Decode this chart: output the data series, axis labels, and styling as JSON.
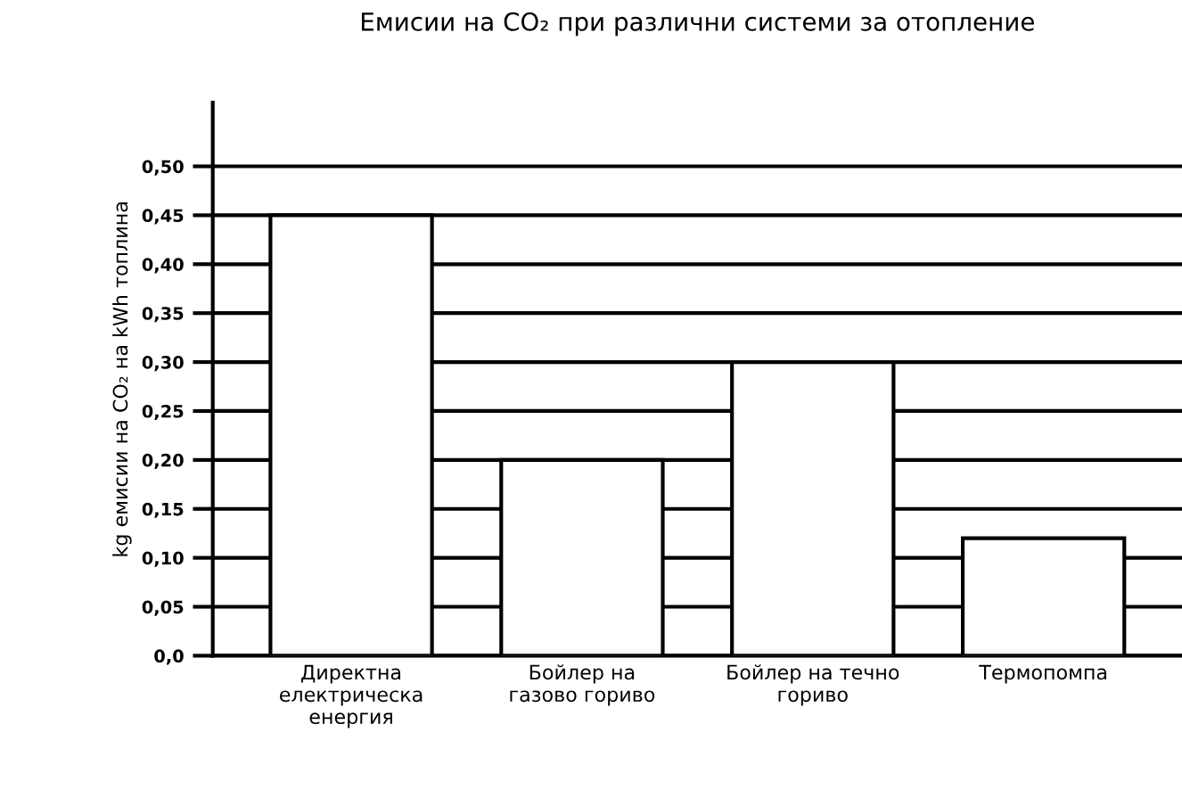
{
  "chart_data": {
    "type": "bar",
    "title": "Емисии на CO₂ при различни системи за отопление",
    "ylabel": "kg емисии на CO₂ на kWh топлина",
    "categories": [
      "Директна\nелектрическа\nенергия",
      "Бойлер на\nгазово гориво",
      "Бойлер на течно\nгориво",
      "Термопомпа"
    ],
    "values": [
      0.45,
      0.2,
      0.3,
      0.12
    ],
    "color": "#ffffff",
    "ylim": [
      0,
      0.565
    ],
    "yticks": [
      {
        "value": 0,
        "label": "0,0"
      },
      {
        "value": 0.05,
        "label": "0,05"
      },
      {
        "value": 0.1,
        "label": "0,10"
      },
      {
        "value": 0.15,
        "label": "0,15"
      },
      {
        "value": 0.2,
        "label": "0,20"
      },
      {
        "value": 0.25,
        "label": "0,25"
      },
      {
        "value": 0.3,
        "label": "0,30"
      },
      {
        "value": 0.35,
        "label": "0,35"
      },
      {
        "value": 0.4,
        "label": "0,40"
      },
      {
        "value": 0.45,
        "label": "0,45"
      },
      {
        "value": 0.5,
        "label": "0,50"
      }
    ],
    "grid": "y"
  }
}
